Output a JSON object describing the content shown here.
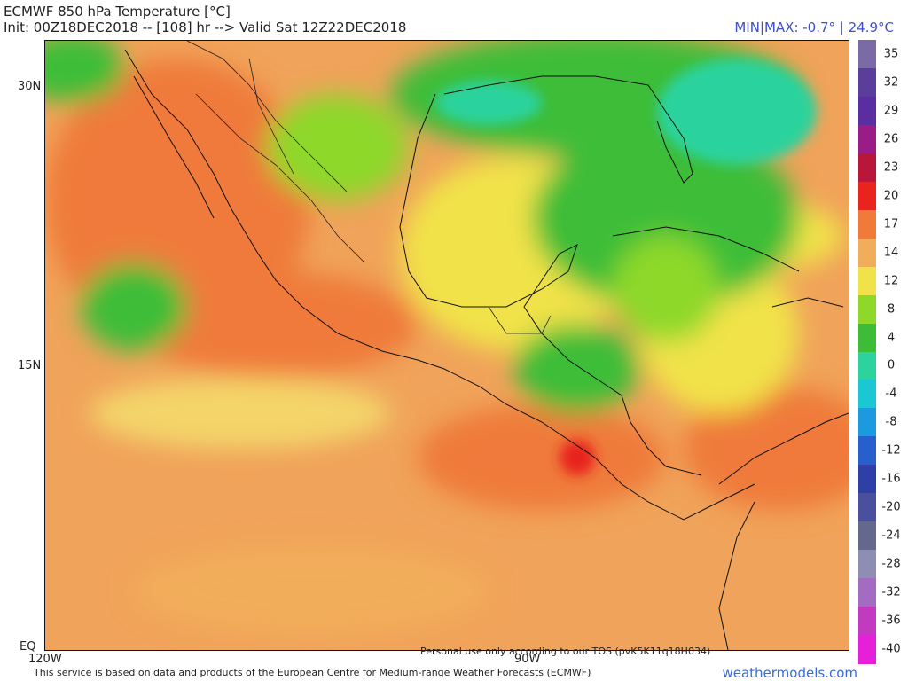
{
  "header": {
    "title": "ECMWF 850 hPa Temperature [°C]",
    "subtitle": "Init: 00Z18DEC2018 -- [108] hr --> Valid Sat 12Z22DEC2018",
    "minmax": "MIN|MAX: -0.7° | 24.9°C"
  },
  "axes": {
    "lat_labels": [
      "30N",
      "15N",
      "EQ"
    ],
    "lon_labels": [
      "120W",
      "90W"
    ]
  },
  "colorbar": {
    "labels": [
      "35",
      "32",
      "29",
      "26",
      "23",
      "20",
      "17",
      "14",
      "12",
      "8",
      "4",
      "0",
      "-4",
      "-8",
      "-12",
      "-16",
      "-20",
      "-24",
      "-28",
      "-32",
      "-36",
      "-40"
    ],
    "colors": [
      "#7a6aa6",
      "#5b3e9c",
      "#5a2ea0",
      "#9a1c86",
      "#b8163a",
      "#e8241c",
      "#ef7a3a",
      "#f2ad5a",
      "#f1e24a",
      "#8ed82a",
      "#3dbd37",
      "#2cd39d",
      "#1ac8d4",
      "#1b9ae0",
      "#2760cc",
      "#2f3fa8",
      "#4a4f9e",
      "#64688f",
      "#8e8eb4",
      "#a36cc2",
      "#c23ac0",
      "#e61fd8"
    ]
  },
  "map": {
    "colors": {
      "ocean_warm": "#f0a35a",
      "ocean_hot": "#ef7a3a",
      "yellow": "#f1e24a",
      "green": "#3dbd37",
      "light_green": "#8ed82a",
      "cyan": "#2cd39d",
      "land_orange": "#f2ad5a"
    }
  },
  "footer": {
    "tos": "Personal use only according to our TOS (pvK5K11q18H034)",
    "service": "This service is based on data and products of the European Centre for Medium-range Weather Forecasts (ECMWF)",
    "brand": "weathermodels.com"
  }
}
